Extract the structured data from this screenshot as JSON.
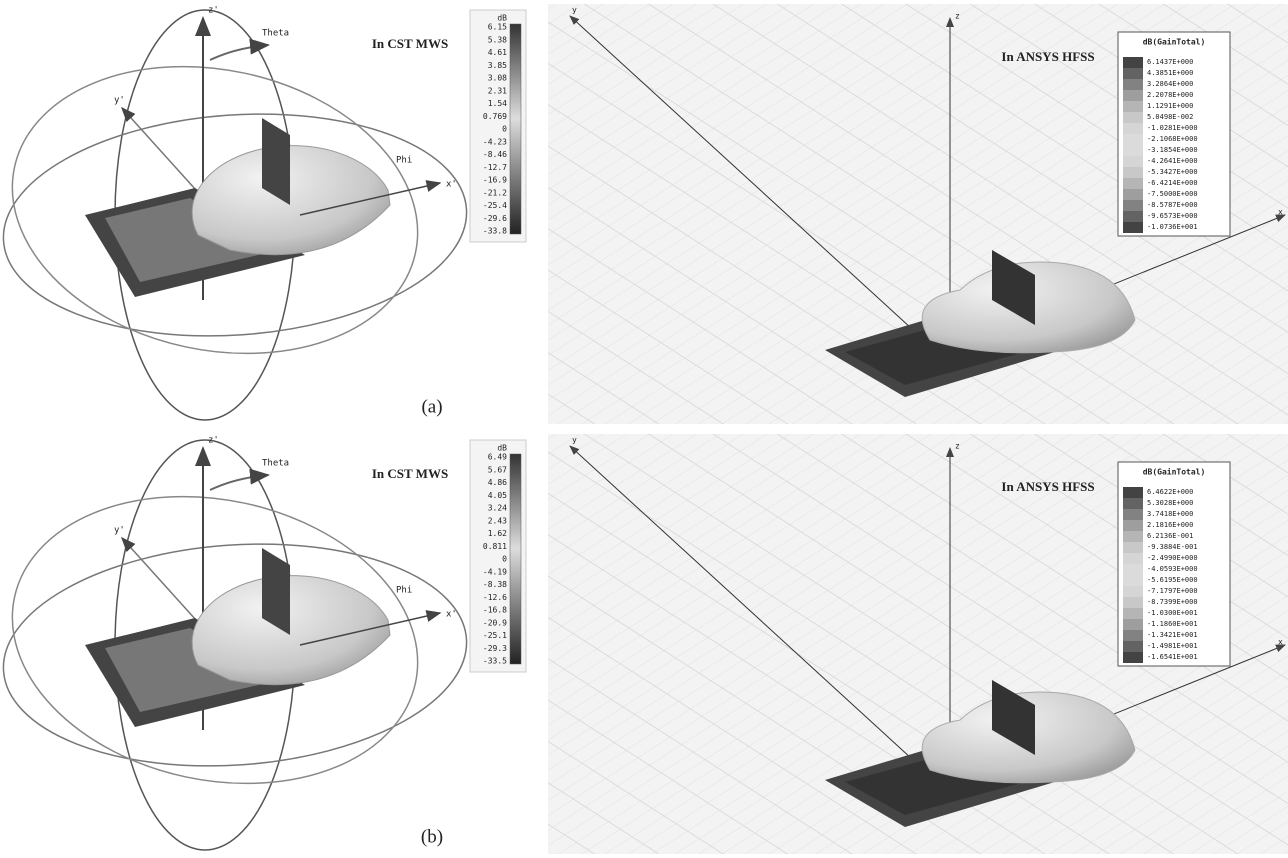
{
  "panels": [
    {
      "caption": "(a)",
      "cst": {
        "title": "In CST MWS",
        "axes": {
          "x": "x'",
          "y": "y'",
          "z": "z'"
        },
        "theta": "Theta",
        "phi": "Phi",
        "colorbar": {
          "unit": "dB",
          "labels": [
            "6.15",
            "5.38",
            "4.61",
            "3.85",
            "3.08",
            "2.31",
            "1.54",
            "0.769",
            "0",
            "-4.23",
            "-8.46",
            "-12.7",
            "-16.9",
            "-21.2",
            "-25.4",
            "-29.6",
            "-33.8"
          ]
        }
      },
      "hfss": {
        "title": "In ANSYS HFSS",
        "axes": {
          "x": "x",
          "y": "y",
          "z": "z"
        },
        "legend": {
          "title": "dB(GainTotal)",
          "labels": [
            "6.1437E+000",
            "4.3851E+000",
            "3.2864E+000",
            "2.2078E+000",
            "1.1291E+000",
            "5.0498E-002",
            "-1.0281E+000",
            "-2.1068E+000",
            "-3.1854E+000",
            "-4.2641E+000",
            "-5.3427E+000",
            "-6.4214E+000",
            "-7.5000E+000",
            "-8.5787E+000",
            "-9.6573E+000",
            "-1.0736E+001"
          ]
        }
      }
    },
    {
      "caption": "(b)",
      "cst": {
        "title": "In CST MWS",
        "axes": {
          "x": "x'",
          "y": "y'",
          "z": "z'"
        },
        "theta": "Theta",
        "phi": "Phi",
        "colorbar": {
          "unit": "dB",
          "labels": [
            "6.49",
            "5.67",
            "4.86",
            "4.05",
            "3.24",
            "2.43",
            "1.62",
            "0.811",
            "0",
            "-4.19",
            "-8.38",
            "-12.6",
            "-16.8",
            "-20.9",
            "-25.1",
            "-29.3",
            "-33.5"
          ]
        }
      },
      "hfss": {
        "title": "In ANSYS HFSS",
        "axes": {
          "x": "x",
          "y": "y",
          "z": "z"
        },
        "legend": {
          "title": "dB(GainTotal)",
          "labels": [
            "6.4622E+000",
            "5.3028E+000",
            "3.7418E+000",
            "2.1816E+000",
            "6.2136E-001",
            "-9.3884E-001",
            "-2.4990E+000",
            "-4.0593E+000",
            "-5.6195E+000",
            "-7.1797E+000",
            "-8.7399E+000",
            "-1.0300E+001",
            "-1.1860E+001",
            "-1.3421E+001",
            "-1.4981E+001",
            "-1.6541E+001"
          ]
        }
      }
    }
  ]
}
